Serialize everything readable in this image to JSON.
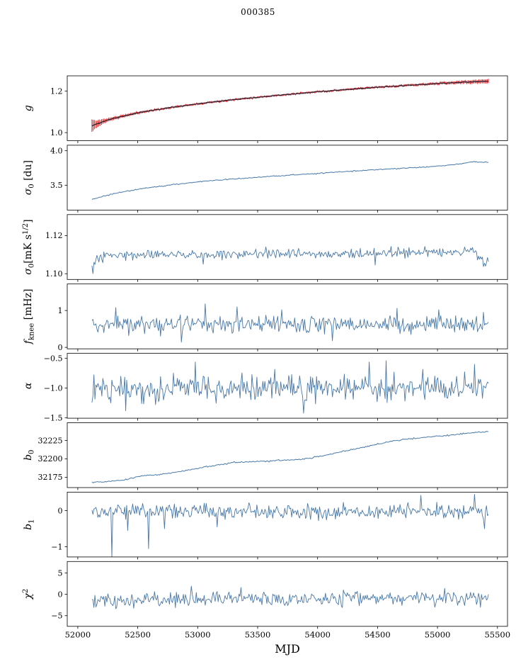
{
  "colors": {
    "background": "#ffffff",
    "axis": "#000000",
    "line_blue": "#4878a8",
    "line_dark": "#25253a",
    "errorbar_red": "#dd1111"
  },
  "chart_data": {
    "type": "line",
    "title": "000385",
    "xlabel": "MJD",
    "grid": false,
    "legend": "none",
    "x_axis": {
      "lim": [
        51912,
        55584
      ],
      "ticks": [
        52000,
        52500,
        53000,
        53500,
        54000,
        54500,
        55000,
        55500
      ]
    },
    "panels": [
      {
        "name": "g",
        "ylabel": [
          {
            "t": "g",
            "i": true
          }
        ],
        "ylim": [
          0.961,
          1.274
        ],
        "yticks": [
          {
            "v": 1.0,
            "label": "1.0"
          },
          {
            "v": 1.2,
            "label": "1.2"
          }
        ],
        "series": [
          {
            "name": "g-errorbar",
            "style": "errorbar",
            "color": "#dd1111",
            "width": 1.0,
            "n": 330,
            "noise": 0.0015,
            "seed": 11,
            "x_range": [
              52118,
              55425
            ],
            "trend": [
              [
                52118,
                1.033
              ],
              [
                52250,
                1.062
              ],
              [
                52500,
                1.096
              ],
              [
                52750,
                1.119
              ],
              [
                53000,
                1.139
              ],
              [
                53250,
                1.156
              ],
              [
                53500,
                1.171
              ],
              [
                53750,
                1.184
              ],
              [
                54000,
                1.197
              ],
              [
                54250,
                1.208
              ],
              [
                54500,
                1.219
              ],
              [
                54750,
                1.228
              ],
              [
                55000,
                1.237
              ],
              [
                55200,
                1.243
              ],
              [
                55425,
                1.248
              ]
            ],
            "err_trend": [
              [
                52118,
                0.03
              ],
              [
                52150,
                0.018
              ],
              [
                52250,
                0.008
              ],
              [
                52600,
                0.005
              ],
              [
                53500,
                0.004
              ],
              [
                54800,
                0.005
              ],
              [
                55150,
                0.007
              ],
              [
                55425,
                0.01
              ]
            ]
          },
          {
            "name": "g-fit",
            "style": "line",
            "color": "#25253a",
            "width": 1.2,
            "n": 330,
            "noise": 0.0012,
            "seed": 12,
            "x_range": [
              52118,
              55425
            ],
            "trend": [
              [
                52118,
                1.033
              ],
              [
                52250,
                1.062
              ],
              [
                52500,
                1.096
              ],
              [
                52750,
                1.119
              ],
              [
                53000,
                1.139
              ],
              [
                53250,
                1.156
              ],
              [
                53500,
                1.171
              ],
              [
                53750,
                1.184
              ],
              [
                54000,
                1.197
              ],
              [
                54250,
                1.208
              ],
              [
                54500,
                1.219
              ],
              [
                54750,
                1.228
              ],
              [
                55000,
                1.237
              ],
              [
                55200,
                1.243
              ],
              [
                55425,
                1.248
              ]
            ]
          }
        ]
      },
      {
        "name": "sigma0-du",
        "ylabel": [
          {
            "t": "σ",
            "i": true
          },
          {
            "t": "0",
            "s": "sub"
          },
          {
            "t": " [du]"
          }
        ],
        "ylim": [
          3.14,
          4.08
        ],
        "yticks": [
          {
            "v": 3.5,
            "label": "3.5"
          },
          {
            "v": 4.0,
            "label": "4.0"
          }
        ],
        "series": [
          {
            "name": "sigma0-du",
            "style": "line",
            "color": "#4878a8",
            "width": 1.0,
            "n": 330,
            "noise": 0.004,
            "seed": 21,
            "x_range": [
              52118,
              55425
            ],
            "trend": [
              [
                52118,
                3.295
              ],
              [
                52300,
                3.38
              ],
              [
                52500,
                3.44
              ],
              [
                52750,
                3.5
              ],
              [
                53000,
                3.55
              ],
              [
                53250,
                3.585
              ],
              [
                53500,
                3.615
              ],
              [
                53750,
                3.645
              ],
              [
                54000,
                3.67
              ],
              [
                54250,
                3.7
              ],
              [
                54500,
                3.725
              ],
              [
                54750,
                3.75
              ],
              [
                55000,
                3.775
              ],
              [
                55150,
                3.8
              ],
              [
                55300,
                3.84
              ],
              [
                55425,
                3.83
              ]
            ]
          }
        ]
      },
      {
        "name": "sigma0-mks",
        "ylabel": [
          {
            "t": "σ",
            "i": true
          },
          {
            "t": "0",
            "s": "sub"
          },
          {
            "t": "[mK s"
          },
          {
            "t": "1/2",
            "s": "sup"
          },
          {
            "t": "]"
          }
        ],
        "ylim": [
          1.097,
          1.131
        ],
        "yticks": [
          {
            "v": 1.1,
            "label": "1.10"
          },
          {
            "v": 1.12,
            "label": "1.12"
          }
        ],
        "series": [
          {
            "name": "sigma0-mks",
            "style": "line",
            "color": "#4878a8",
            "width": 0.9,
            "n": 400,
            "noise": 0.0013,
            "seed": 31,
            "x_range": [
              52118,
              55425
            ],
            "trend": [
              [
                52118,
                1.1035
              ],
              [
                52170,
                1.1075
              ],
              [
                52300,
                1.11
              ],
              [
                52700,
                1.1105
              ],
              [
                53100,
                1.1098
              ],
              [
                53600,
                1.1103
              ],
              [
                54100,
                1.1103
              ],
              [
                54600,
                1.1108
              ],
              [
                54900,
                1.1112
              ],
              [
                55150,
                1.111
              ],
              [
                55300,
                1.1118
              ],
              [
                55370,
                1.1068
              ],
              [
                55425,
                1.1078
              ]
            ],
            "spikes": [
              [
                52130,
                1.1
              ],
              [
                53050,
                1.105
              ],
              [
                54480,
                1.1045
              ],
              [
                55400,
                1.104
              ]
            ]
          }
        ]
      },
      {
        "name": "fknee",
        "ylabel": [
          {
            "t": "f",
            "i": true
          },
          {
            "t": "knee",
            "s": "sub"
          },
          {
            "t": " [mHz]"
          }
        ],
        "ylim": [
          -0.04,
          1.72
        ],
        "yticks": [
          {
            "v": 0,
            "label": "0"
          },
          {
            "v": 1,
            "label": "1"
          }
        ],
        "series": [
          {
            "name": "fknee",
            "style": "line",
            "color": "#4878a8",
            "width": 0.9,
            "n": 400,
            "noise": 0.115,
            "seed": 41,
            "x_range": [
              52118,
              55425
            ],
            "trend": [
              [
                52118,
                0.62
              ],
              [
                55425,
                0.62
              ]
            ],
            "spikes": [
              [
                52320,
                1.08
              ],
              [
                53060,
                1.18
              ],
              [
                53330,
                1.1
              ],
              [
                53700,
                1.02
              ],
              [
                54660,
                1.06
              ],
              [
                55010,
                1.02
              ],
              [
                52860,
                0.14
              ],
              [
                54120,
                0.18
              ],
              [
                55380,
                0.95
              ]
            ]
          }
        ]
      },
      {
        "name": "alpha",
        "ylabel": [
          {
            "t": "α",
            "i": true
          }
        ],
        "ylim": [
          -1.505,
          -0.416
        ],
        "yticks": [
          {
            "v": -1.5,
            "label": "−1.5"
          },
          {
            "v": -1.0,
            "label": "−1.0"
          },
          {
            "v": -0.5,
            "label": "−0.5"
          }
        ],
        "series": [
          {
            "name": "alpha",
            "style": "line",
            "color": "#4878a8",
            "width": 0.9,
            "n": 400,
            "noise": 0.11,
            "seed": 51,
            "x_range": [
              52118,
              55425
            ],
            "trend": [
              [
                52118,
                -1.0
              ],
              [
                55425,
                -1.0
              ]
            ],
            "spikes": [
              [
                52980,
                -0.56
              ],
              [
                53880,
                -1.42
              ],
              [
                54430,
                -0.56
              ],
              [
                54570,
                -0.54
              ],
              [
                55310,
                -0.6
              ],
              [
                52400,
                -1.38
              ]
            ]
          }
        ]
      },
      {
        "name": "b0",
        "ylabel": [
          {
            "t": "b",
            "i": true
          },
          {
            "t": "0",
            "s": "sub"
          }
        ],
        "ylim": [
          32161,
          32249
        ],
        "yticks": [
          {
            "v": 32175,
            "label": "32175"
          },
          {
            "v": 32200,
            "label": "32200"
          },
          {
            "v": 32225,
            "label": "32225"
          }
        ],
        "series": [
          {
            "name": "b0",
            "style": "line",
            "color": "#4878a8",
            "width": 1.0,
            "n": 330,
            "noise": 0.5,
            "seed": 61,
            "x_range": [
              52118,
              55425
            ],
            "trend": [
              [
                52118,
                32168
              ],
              [
                52250,
                32169
              ],
              [
                52400,
                32172
              ],
              [
                52550,
                32177
              ],
              [
                52700,
                32179
              ],
              [
                52900,
                32184
              ],
              [
                53100,
                32190
              ],
              [
                53300,
                32195
              ],
              [
                53600,
                32197
              ],
              [
                53900,
                32200
              ],
              [
                54100,
                32206
              ],
              [
                54300,
                32213
              ],
              [
                54500,
                32220
              ],
              [
                54700,
                32226
              ],
              [
                54900,
                32229
              ],
              [
                55100,
                32232
              ],
              [
                55250,
                32235
              ],
              [
                55425,
                32237
              ]
            ]
          }
        ]
      },
      {
        "name": "b1",
        "ylabel": [
          {
            "t": "b",
            "i": true
          },
          {
            "t": "1",
            "s": "sub"
          }
        ],
        "ylim": [
          -1.28,
          0.51
        ],
        "yticks": [
          {
            "v": -1,
            "label": "−1"
          },
          {
            "v": 0,
            "label": "0"
          }
        ],
        "series": [
          {
            "name": "b1",
            "style": "line",
            "color": "#4878a8",
            "width": 0.9,
            "n": 400,
            "noise": 0.1,
            "seed": 71,
            "x_range": [
              52118,
              55425
            ],
            "trend": [
              [
                52118,
                -0.02
              ],
              [
                55425,
                -0.02
              ]
            ],
            "spikes": [
              [
                52280,
                -1.27
              ],
              [
                52590,
                -1.05
              ],
              [
                52420,
                -0.55
              ],
              [
                52720,
                -0.5
              ],
              [
                53160,
                -0.45
              ],
              [
                54860,
                0.42
              ],
              [
                55310,
                0.45
              ],
              [
                55390,
                -0.5
              ]
            ]
          }
        ]
      },
      {
        "name": "chi2",
        "ylabel": [
          {
            "t": "χ",
            "i": true
          },
          {
            "t": "2",
            "s": "sup"
          }
        ],
        "ylim": [
          -7.5,
          7.7
        ],
        "yticks": [
          {
            "v": -5,
            "label": "−5"
          },
          {
            "v": 0,
            "label": "0"
          },
          {
            "v": 5,
            "label": "5"
          }
        ],
        "series": [
          {
            "name": "chi2",
            "style": "line",
            "color": "#4878a8",
            "width": 0.9,
            "n": 400,
            "noise": 0.8,
            "seed": 81,
            "x_range": [
              52118,
              55425
            ],
            "trend": [
              [
                52118,
                -1.3
              ],
              [
                52500,
                -1.4
              ],
              [
                53000,
                -1.1
              ],
              [
                53500,
                -0.95
              ],
              [
                54000,
                -1.05
              ],
              [
                54500,
                -0.9
              ],
              [
                55000,
                -0.85
              ],
              [
                55425,
                -0.9
              ]
            ],
            "spikes": [
              [
                52950,
                1.9
              ],
              [
                53360,
                1.6
              ],
              [
                55060,
                1.4
              ],
              [
                52320,
                -3.4
              ],
              [
                54210,
                -3.1
              ],
              [
                54980,
                -3.0
              ]
            ]
          }
        ]
      }
    ]
  }
}
